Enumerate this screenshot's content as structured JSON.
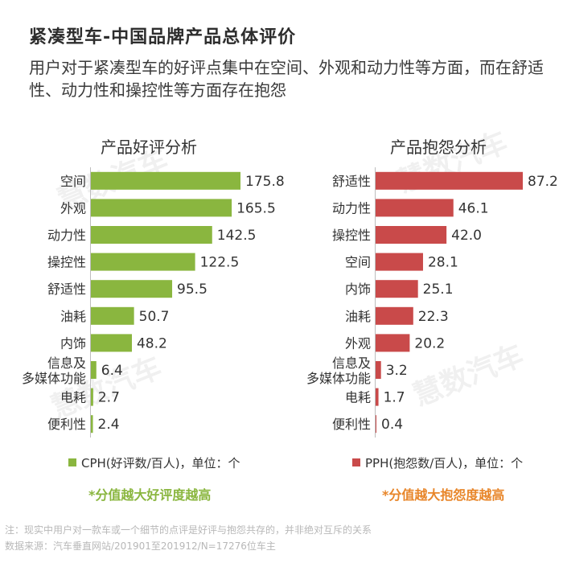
{
  "title": "紧凑型车-中国品牌产品总体评价",
  "subtitle": "用户对于紧凑型车的好评点集中在空间、外观和动力性等方面，而在舒适性、动力性和操控性等方面存在抱怨",
  "watermark": "慧数汽车",
  "notes": {
    "line1": "注：现实中用户对一款车或一个细节的点评是好评与抱怨共存的，并非绝对互斥的关系",
    "line2": "数据来源：汽车垂直网站/201901至201912/N=17276位车主"
  },
  "chart_data": [
    {
      "type": "bar",
      "orientation": "horizontal",
      "title": "产品好评分析",
      "color": "#8ab63f",
      "categories": [
        "空间",
        "外观",
        "动力性",
        "操控性",
        "舒适性",
        "油耗",
        "内饰",
        "信息及多媒体功能",
        "电耗",
        "便利性"
      ],
      "category_lines": [
        [
          "空间"
        ],
        [
          "外观"
        ],
        [
          "动力性"
        ],
        [
          "操控性"
        ],
        [
          "舒适性"
        ],
        [
          "油耗"
        ],
        [
          "内饰"
        ],
        [
          "信息及",
          "多媒体功能"
        ],
        [
          "电耗"
        ],
        [
          "便利性"
        ]
      ],
      "values": [
        175.8,
        165.5,
        142.5,
        122.5,
        95.5,
        50.7,
        48.2,
        6.4,
        2.7,
        2.4
      ],
      "value_labels": [
        "175.8",
        "165.5",
        "142.5",
        "122.5",
        "95.5",
        "50.7",
        "48.2",
        "6.4",
        "2.7",
        "2.4"
      ],
      "legend": "CPH(好评数/百人)，单位：个",
      "footnote": "*分值越大好评度越高",
      "footnote_color": "#8ab63f"
    },
    {
      "type": "bar",
      "orientation": "horizontal",
      "title": "产品抱怨分析",
      "color": "#c94a4a",
      "categories": [
        "舒适性",
        "动力性",
        "操控性",
        "空间",
        "内饰",
        "油耗",
        "外观",
        "信息及多媒体功能",
        "电耗",
        "便利性"
      ],
      "category_lines": [
        [
          "舒适性"
        ],
        [
          "动力性"
        ],
        [
          "操控性"
        ],
        [
          "空间"
        ],
        [
          "内饰"
        ],
        [
          "油耗"
        ],
        [
          "外观"
        ],
        [
          "信息及",
          "多媒体功能"
        ],
        [
          "电耗"
        ],
        [
          "便利性"
        ]
      ],
      "values": [
        87.2,
        46.1,
        42.0,
        28.1,
        25.1,
        22.3,
        20.2,
        3.2,
        1.7,
        0.4
      ],
      "value_labels": [
        "87.2",
        "46.1",
        "42.0",
        "28.1",
        "25.1",
        "22.3",
        "20.2",
        "3.2",
        "1.7",
        "0.4"
      ],
      "legend": "PPH(抱怨数/百人)，单位：个",
      "footnote": "*分值越大抱怨度越高",
      "footnote_color": "#e8862a"
    }
  ]
}
